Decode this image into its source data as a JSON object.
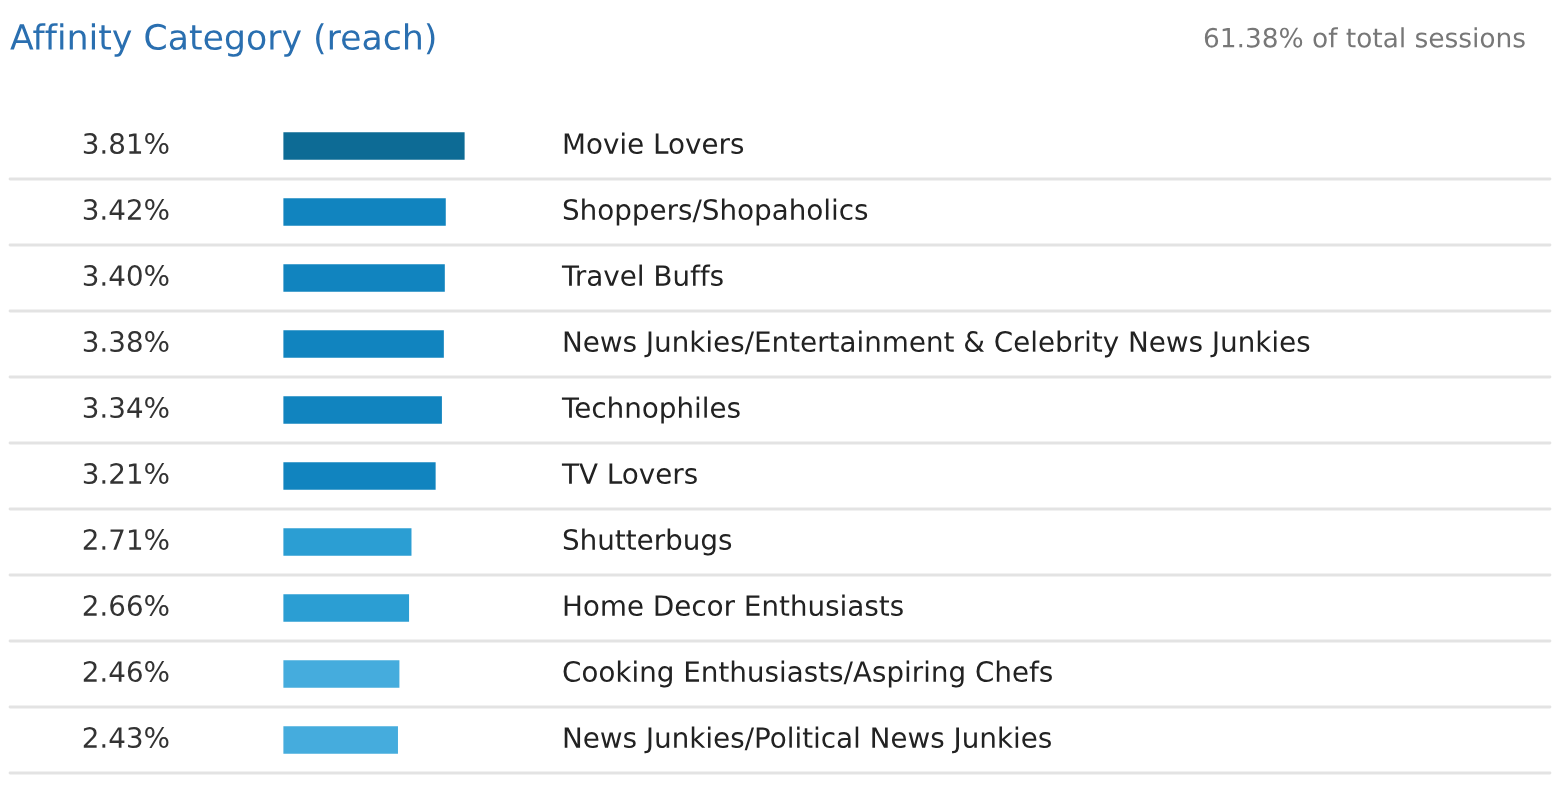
{
  "chart_data": {
    "type": "bar",
    "orientation": "horizontal",
    "title": "Affinity Category (reach)",
    "annotations": [
      "61.38% of total sessions"
    ],
    "categories": [
      "Movie Lovers",
      "Shoppers/Shopaholics",
      "Travel Buffs",
      "News Junkies/Entertainment & Celebrity News Junkies",
      "Technophiles",
      "TV Lovers",
      "Shutterbugs",
      "Home Decor Enthusiasts",
      "Cooking Enthusiasts/Aspiring Chefs",
      "News Junkies/Political News Junkies"
    ],
    "values": [
      3.81,
      3.42,
      3.4,
      3.38,
      3.34,
      3.21,
      2.71,
      2.66,
      2.46,
      2.43
    ],
    "value_labels": [
      "3.81%",
      "3.42%",
      "3.40%",
      "3.38%",
      "3.34%",
      "3.21%",
      "2.71%",
      "2.66%",
      "2.46%",
      "2.43%"
    ],
    "colors": [
      "#0d6b95",
      "#1184bf",
      "#1184bf",
      "#1184bf",
      "#1184bf",
      "#1184bf",
      "#2b9ed3",
      "#2b9ed3",
      "#45acdd",
      "#45acdd"
    ],
    "grid": "y",
    "legend": false
  }
}
